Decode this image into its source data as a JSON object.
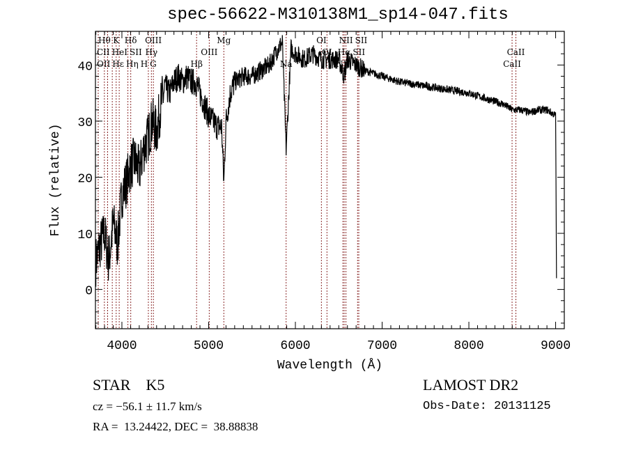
{
  "chart_data": {
    "type": "line",
    "title": "spec-56622-M310138M1_sp14-047.fits",
    "xlabel": "Wavelength (Å)",
    "ylabel": "Flux (relative)",
    "xlim": [
      3695,
      9100
    ],
    "ylim": [
      -7,
      46
    ],
    "xticks": [
      4000,
      5000,
      6000,
      7000,
      8000,
      9000
    ],
    "yticks": [
      0,
      10,
      20,
      30,
      40
    ],
    "grid": false,
    "series": [
      {
        "name": "spectrum",
        "x": [
          3700,
          3750,
          3800,
          3850,
          3900,
          3950,
          4000,
          4050,
          4100,
          4150,
          4200,
          4250,
          4300,
          4350,
          4400,
          4450,
          4500,
          4550,
          4600,
          4650,
          4700,
          4750,
          4800,
          4850,
          4900,
          4950,
          5000,
          5050,
          5100,
          5150,
          5175,
          5200,
          5250,
          5300,
          5400,
          5500,
          5600,
          5700,
          5800,
          5850,
          5893,
          5950,
          6000,
          6100,
          6200,
          6300,
          6400,
          6500,
          6563,
          6600,
          6700,
          6800,
          6900,
          7000,
          7200,
          7400,
          7600,
          7800,
          8000,
          8200,
          8400,
          8500,
          8600,
          8700,
          8800,
          8900,
          9000,
          9010
        ],
        "y": [
          5,
          8,
          10,
          5,
          12,
          8,
          17,
          19,
          22,
          23,
          21,
          25,
          27,
          30,
          28,
          33,
          36,
          35,
          37,
          38,
          37,
          38,
          37,
          37,
          35,
          33,
          31,
          30,
          29,
          29,
          19,
          30,
          35,
          37,
          38,
          38,
          39,
          40,
          43,
          44,
          25,
          43,
          42,
          41,
          42,
          41,
          41,
          41,
          38,
          41,
          40,
          39,
          38.5,
          38,
          37,
          36.5,
          36,
          35.5,
          35,
          34,
          33,
          32,
          32,
          31.5,
          32,
          32,
          31,
          2
        ]
      }
    ],
    "lines": [
      {
        "name": "Hθ",
        "wave": 3798,
        "row": 0
      },
      {
        "name": "K",
        "wave": 3934,
        "row": 0
      },
      {
        "name": "Hδ",
        "wave": 4102,
        "row": 0
      },
      {
        "name": "OIII",
        "wave": 4363,
        "row": 0
      },
      {
        "name": "Mg",
        "wave": 5175,
        "row": 0
      },
      {
        "name": "OI",
        "wave": 6300,
        "row": 0
      },
      {
        "name": "NII",
        "wave": 6583,
        "row": 0
      },
      {
        "name": "SII",
        "wave": 6717,
        "row": 0
      },
      {
        "name": "CaII",
        "wave": 8542,
        "row": 1
      },
      {
        "name": "CII",
        "wave": 3727,
        "row": 1
      },
      {
        "name": "HeI",
        "wave": 3889,
        "row": 1
      },
      {
        "name": "SII",
        "wave": 4069,
        "row": 1
      },
      {
        "name": "Hγ",
        "wave": 4340,
        "row": 1
      },
      {
        "name": "OIII",
        "wave": 5007,
        "row": 1
      },
      {
        "name": "OI",
        "wave": 6364,
        "row": 1
      },
      {
        "name": "Hα",
        "wave": 6563,
        "row": 1
      },
      {
        "name": "SII",
        "wave": 6731,
        "row": 1
      },
      {
        "name": "OII",
        "wave": 3727,
        "row": 2
      },
      {
        "name": "Hε",
        "wave": 3835,
        "row": 2
      },
      {
        "name": "Hη",
        "wave": 3835,
        "row": 2
      },
      {
        "name": "H",
        "wave": 3969,
        "row": 2
      },
      {
        "name": "G",
        "wave": 4305,
        "row": 2
      },
      {
        "name": "Hβ",
        "wave": 4861,
        "row": 2
      },
      {
        "name": "Na",
        "wave": 5893,
        "row": 2
      },
      {
        "name": "NII",
        "wave": 6548,
        "row": 2
      },
      {
        "name": "CaII",
        "wave": 8498,
        "row": 2
      }
    ],
    "line_color": "#8b2a2a"
  },
  "info": {
    "object": "STAR    K5",
    "survey": "LAMOST DR2",
    "cz": "cz = −56.1 ± 11.7 km/s",
    "obs_date": "Obs-Date: 20131125",
    "coords": "RA =  13.24422, DEC =  38.88838"
  }
}
